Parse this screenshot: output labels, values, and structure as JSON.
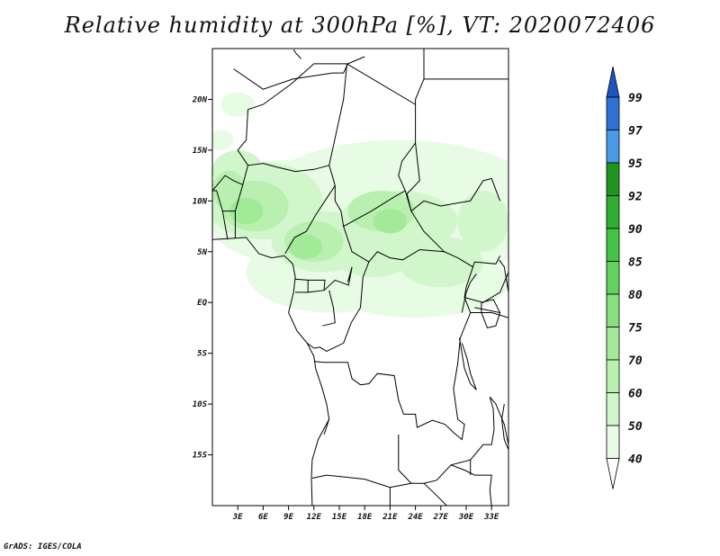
{
  "title": "Relative humidity at 300hPa [%], VT: 2020072406",
  "credit": "GrADS: IGES/COLA",
  "map": {
    "lon_range": [
      0,
      35
    ],
    "lat_range": [
      -20,
      25
    ],
    "lat_ticks": [
      {
        "value": 20,
        "label": "20N"
      },
      {
        "value": 15,
        "label": "15N"
      },
      {
        "value": 10,
        "label": "10N"
      },
      {
        "value": 5,
        "label": "5N"
      },
      {
        "value": 0,
        "label": "EQ"
      },
      {
        "value": -5,
        "label": "5S"
      },
      {
        "value": -10,
        "label": "10S"
      },
      {
        "value": -15,
        "label": "15S"
      }
    ],
    "lon_ticks": [
      {
        "value": 3,
        "label": "3E"
      },
      {
        "value": 6,
        "label": "6E"
      },
      {
        "value": 9,
        "label": "9E"
      },
      {
        "value": 12,
        "label": "12E"
      },
      {
        "value": 15,
        "label": "15E"
      },
      {
        "value": 18,
        "label": "18E"
      },
      {
        "value": 21,
        "label": "21E"
      },
      {
        "value": 24,
        "label": "24E"
      },
      {
        "value": 27,
        "label": "27E"
      },
      {
        "value": 30,
        "label": "30E"
      },
      {
        "value": 33,
        "label": "33E"
      }
    ]
  },
  "colorbar": {
    "levels": [
      "40",
      "50",
      "60",
      "70",
      "75",
      "80",
      "85",
      "90",
      "92",
      "95",
      "97",
      "99"
    ],
    "colors": [
      "#ffffff",
      "#e8fbe4",
      "#d2f6cc",
      "#b9f0b0",
      "#a2ea98",
      "#86e07e",
      "#62d25e",
      "#44c444",
      "#2fae2f",
      "#1f961f",
      "#4a9ae8",
      "#2f72d6",
      "#1c55c2"
    ]
  }
}
